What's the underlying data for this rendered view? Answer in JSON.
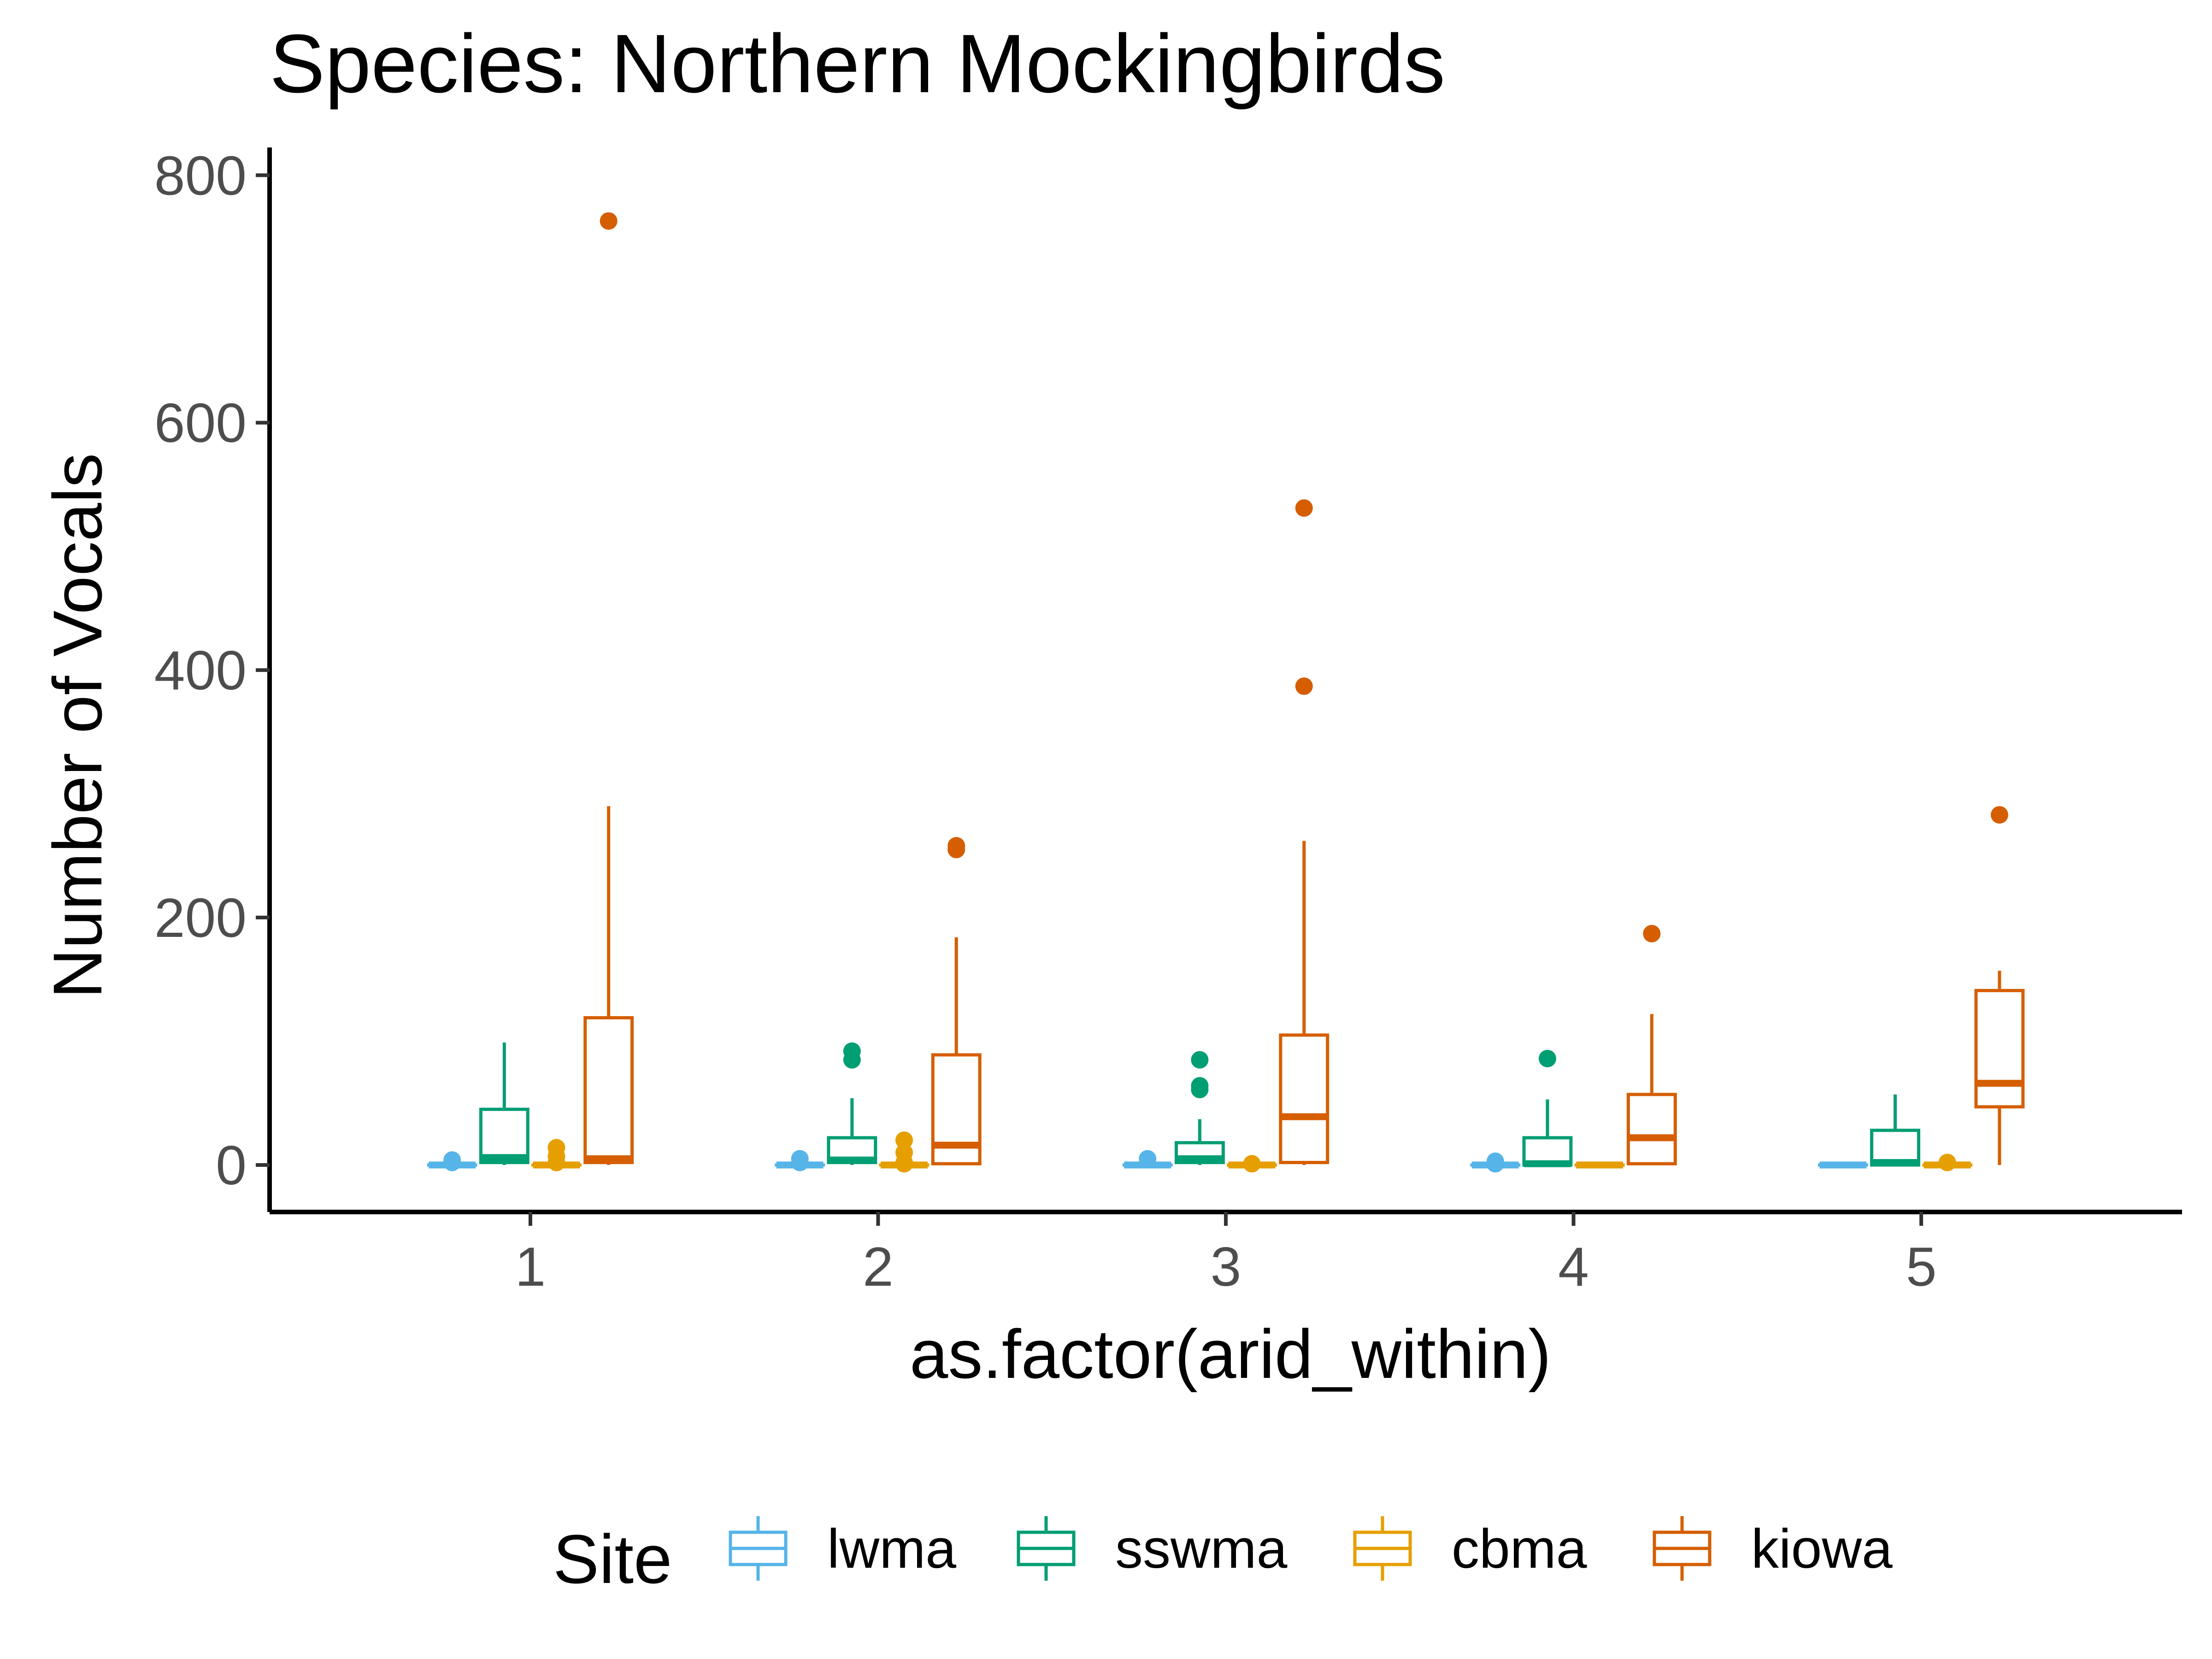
{
  "chart_data": {
    "type": "boxplot",
    "title": "Species: Northern Mockingbirds",
    "xlabel": "as.factor(arid_within)",
    "ylabel": "Number of Vocals",
    "ylim": [
      -38,
      815
    ],
    "y_ticks": [
      0,
      200,
      400,
      600,
      800
    ],
    "y_tick_labels": [
      "0",
      "200",
      "400",
      "600",
      "800"
    ],
    "categories": [
      "1",
      "2",
      "3",
      "4",
      "5"
    ],
    "legend": {
      "title": "Site",
      "position": "bottom"
    },
    "grid": false,
    "series": [
      {
        "name": "lwma",
        "color": "#56B4E9",
        "boxes": [
          {
            "min": 0,
            "q1": 0,
            "median": 0,
            "q3": 0,
            "max": 0,
            "outliers": [
              2,
              4
            ]
          },
          {
            "min": 0,
            "q1": 0,
            "median": 0,
            "q3": 0,
            "max": 0,
            "outliers": [
              2,
              5
            ]
          },
          {
            "min": 0,
            "q1": 0,
            "median": 0,
            "q3": 0,
            "max": 0,
            "outliers": [
              5
            ]
          },
          {
            "min": 0,
            "q1": 0,
            "median": 0,
            "q3": 0,
            "max": 0,
            "outliers": [
              1,
              3
            ]
          },
          {
            "min": 0,
            "q1": 0,
            "median": 0,
            "q3": 0,
            "max": 0,
            "outliers": []
          }
        ]
      },
      {
        "name": "sswma",
        "color": "#009E73",
        "boxes": [
          {
            "min": 0,
            "q1": 2,
            "median": 6,
            "q3": 45,
            "max": 99,
            "outliers": []
          },
          {
            "min": 0,
            "q1": 2,
            "median": 4,
            "q3": 22,
            "max": 54,
            "outliers": [
              85,
              92
            ]
          },
          {
            "min": 0,
            "q1": 2,
            "median": 5,
            "q3": 18,
            "max": 37,
            "outliers": [
              61,
              64,
              85
            ]
          },
          {
            "min": 0,
            "q1": 0,
            "median": 1,
            "q3": 22,
            "max": 53,
            "outliers": [
              86
            ]
          },
          {
            "min": 0,
            "q1": 0,
            "median": 2,
            "q3": 28,
            "max": 57,
            "outliers": []
          }
        ]
      },
      {
        "name": "cbma",
        "color": "#E69F00",
        "boxes": [
          {
            "min": 0,
            "q1": 0,
            "median": 0,
            "q3": 0,
            "max": 0,
            "outliers": [
              2,
              7,
              14
            ]
          },
          {
            "min": 0,
            "q1": 0,
            "median": 0,
            "q3": 0,
            "max": 0,
            "outliers": [
              1,
              2,
              10,
              20
            ]
          },
          {
            "min": 0,
            "q1": 0,
            "median": 0,
            "q3": 0,
            "max": 0,
            "outliers": [
              1
            ]
          },
          {
            "min": 0,
            "q1": 0,
            "median": 0,
            "q3": 0,
            "max": 0,
            "outliers": []
          },
          {
            "min": 0,
            "q1": 0,
            "median": 0,
            "q3": 0,
            "max": 0,
            "outliers": [
              2
            ]
          }
        ]
      },
      {
        "name": "kiowa",
        "color": "#D55E00",
        "boxes": [
          {
            "min": 0,
            "q1": 2,
            "median": 5,
            "q3": 119,
            "max": 290,
            "outliers": [
              763
            ]
          },
          {
            "min": 0,
            "q1": 1,
            "median": 16,
            "q3": 89,
            "max": 184,
            "outliers": [
              255,
              258
            ]
          },
          {
            "min": 0,
            "q1": 2,
            "median": 39,
            "q3": 105,
            "max": 262,
            "outliers": [
              387,
              531
            ]
          },
          {
            "min": 0,
            "q1": 1,
            "median": 22,
            "q3": 57,
            "max": 122,
            "outliers": [
              187
            ]
          },
          {
            "min": 0,
            "q1": 47,
            "median": 66,
            "q3": 141,
            "max": 157,
            "outliers": [
              283
            ]
          }
        ]
      }
    ]
  }
}
